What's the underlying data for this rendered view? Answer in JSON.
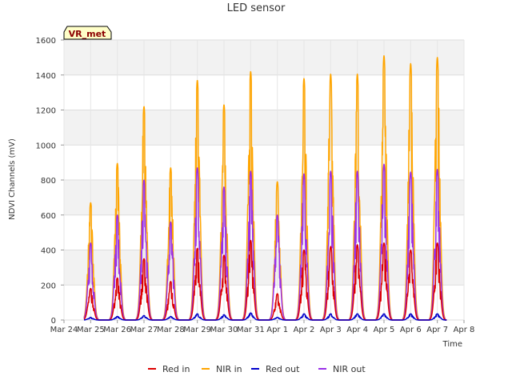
{
  "chart_data": {
    "type": "line",
    "title": "LED sensor",
    "xlabel": "Time",
    "ylabel": "NDVI Channels (mV)",
    "ylim": [
      0,
      1600
    ],
    "yticks": [
      0,
      200,
      400,
      600,
      800,
      1000,
      1200,
      1400,
      1600
    ],
    "xticks": [
      "Mar 24",
      "Mar 25",
      "Mar 26",
      "Mar 27",
      "Mar 28",
      "Mar 29",
      "Mar 30",
      "Mar 31",
      "Apr 1",
      "Apr 2",
      "Apr 3",
      "Apr 4",
      "Apr 5",
      "Apr 6",
      "Apr 7",
      "Apr 8"
    ],
    "grid": true,
    "legend_position": "bottom",
    "site_tag": "VR_met",
    "day_index_of_first_peak": 1,
    "series": [
      {
        "name": "Red in",
        "color": "#dd0000",
        "daily_peaks": [
          180,
          240,
          350,
          220,
          410,
          370,
          455,
          150,
          400,
          420,
          430,
          440,
          400,
          440
        ]
      },
      {
        "name": "NIR in",
        "color": "#ffa500",
        "daily_peaks": [
          670,
          895,
          1220,
          870,
          1370,
          1230,
          1420,
          790,
          1380,
          1405,
          1405,
          1510,
          1465,
          1500
        ]
      },
      {
        "name": "Red out",
        "color": "#0000cc",
        "daily_peaks": [
          15,
          20,
          25,
          20,
          35,
          30,
          40,
          15,
          35,
          35,
          35,
          35,
          35,
          35
        ]
      },
      {
        "name": "NIR out",
        "color": "#9a30e8",
        "daily_peaks": [
          440,
          600,
          800,
          560,
          870,
          760,
          850,
          600,
          835,
          850,
          850,
          890,
          845,
          860
        ]
      }
    ]
  }
}
